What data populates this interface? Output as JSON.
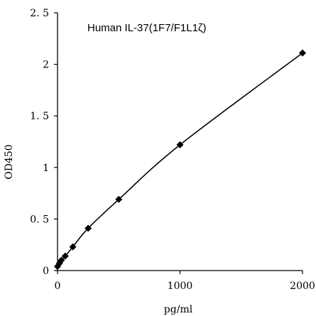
{
  "chart_data": {
    "type": "line",
    "title": "Human    IL-37(1F7/F1L1ζ)",
    "xlabel": "pg/ml",
    "ylabel": "OD450",
    "xlim": [
      0,
      2000
    ],
    "ylim": [
      0,
      2.5
    ],
    "xticks": [
      {
        "value": 0,
        "label": "0"
      },
      {
        "value": 1000,
        "label": "1000"
      },
      {
        "value": 2000,
        "label": "2000"
      }
    ],
    "yticks": [
      {
        "value": 0,
        "label": "0"
      },
      {
        "value": 0.5,
        "label": "0. 5"
      },
      {
        "value": 1,
        "label": "1"
      },
      {
        "value": 1.5,
        "label": "1. 5"
      },
      {
        "value": 2,
        "label": "2"
      },
      {
        "value": 2.5,
        "label": "2. 5"
      }
    ],
    "grid": false,
    "legend": "none",
    "marker": "diamond",
    "series": [
      {
        "x": [
          0,
          15.6,
          31.25,
          62.5,
          125,
          250,
          500,
          1000,
          2000
        ],
        "y": [
          0.04,
          0.07,
          0.1,
          0.14,
          0.23,
          0.41,
          0.69,
          1.22,
          2.11
        ]
      }
    ],
    "colors": {
      "line": "#000000",
      "marker": "#000000",
      "axis": "#000000"
    }
  }
}
